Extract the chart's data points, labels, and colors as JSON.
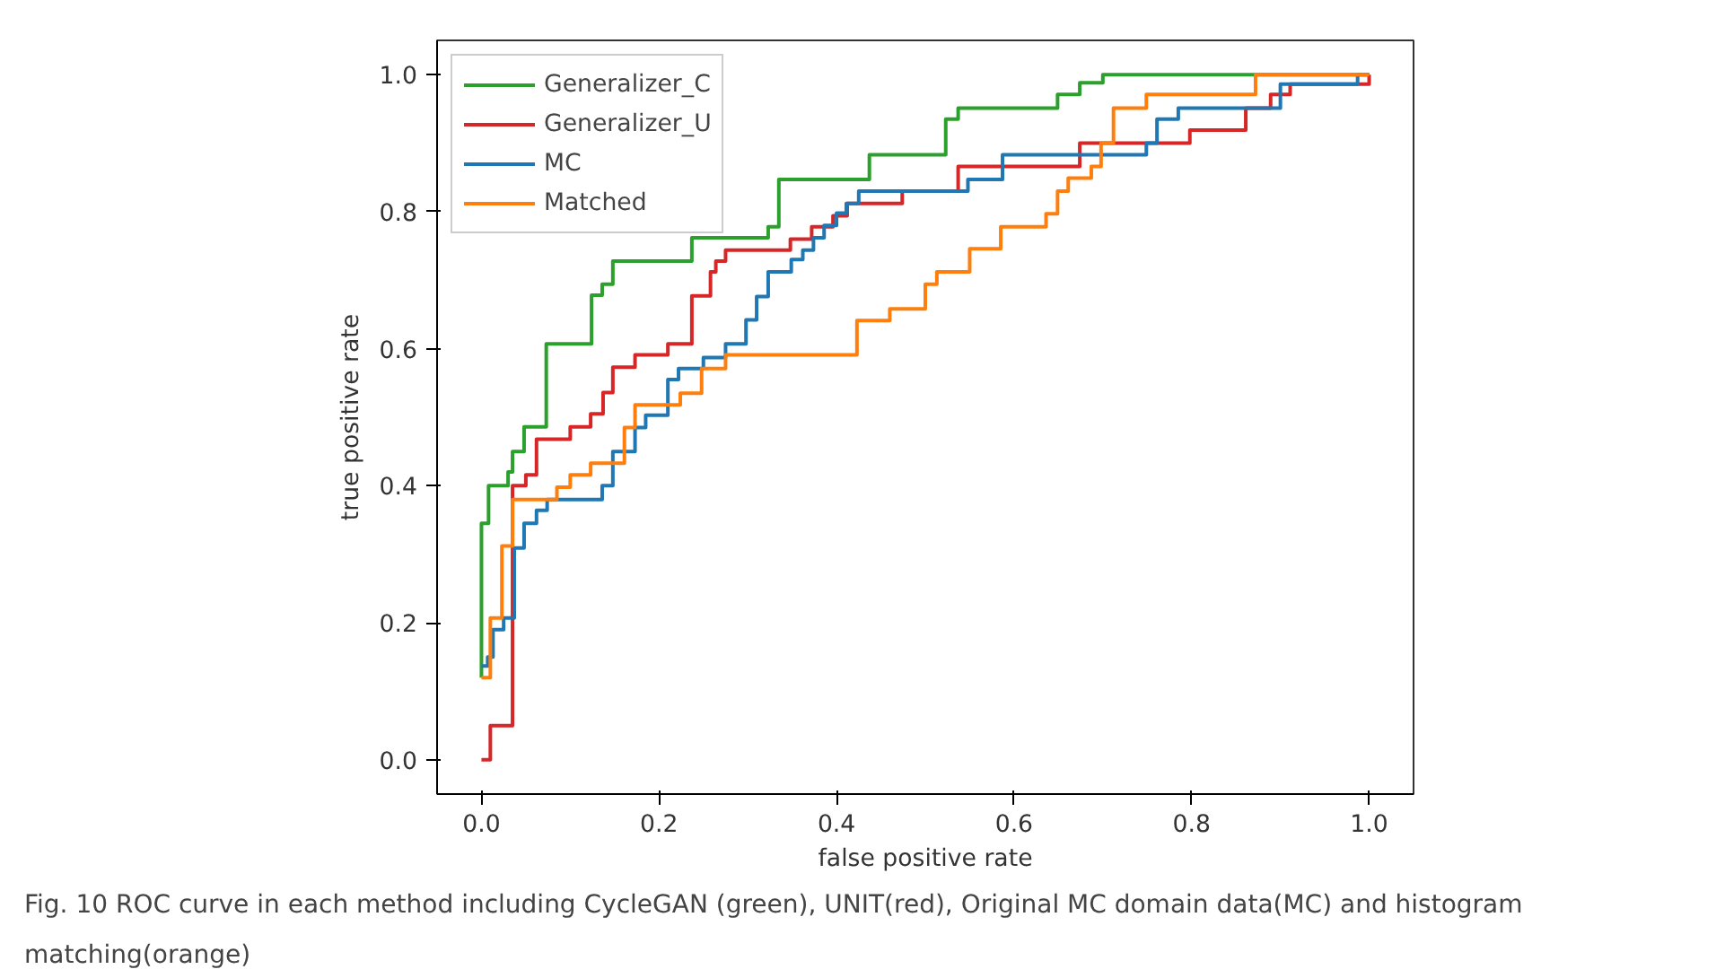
{
  "chart_data": {
    "type": "step",
    "xlabel": "false positive rate",
    "ylabel": "true positive rate",
    "xlim": [
      -0.05,
      1.05
    ],
    "ylim": [
      -0.05,
      1.05
    ],
    "xticks": [
      {
        "value": 0,
        "label": "0.0"
      },
      {
        "value": 0.2,
        "label": "0.2"
      },
      {
        "value": 0.4,
        "label": "0.4"
      },
      {
        "value": 0.6,
        "label": "0.6"
      },
      {
        "value": 0.8,
        "label": "0.8"
      },
      {
        "value": 1,
        "label": "1.0"
      }
    ],
    "yticks": [
      {
        "value": 0,
        "label": "0.0"
      },
      {
        "value": 0.2,
        "label": "0.2"
      },
      {
        "value": 0.4,
        "label": "0.4"
      },
      {
        "value": 0.6,
        "label": "0.6"
      },
      {
        "value": 0.8,
        "label": "0.8"
      },
      {
        "value": 1,
        "label": "1.0"
      }
    ],
    "grid": false,
    "legend": "top left",
    "line_style": "solid",
    "annotations": [
      "Fig. 10  ROC curve in each method including CycleGAN (green), UNIT(red), Original MC domain data(MC) and histogram matching(orange)"
    ],
    "series": [
      {
        "name": "Generalizer_C",
        "color": "#2ca02c",
        "x": [
          0,
          0,
          0.008,
          0.03,
          0.035,
          0.048,
          0.073,
          0.124,
          0.136,
          0.148,
          0.237,
          0.323,
          0.335,
          0.437,
          0.523,
          0.537,
          0.649,
          0.674,
          0.7,
          1
        ],
        "values": [
          0.12,
          0.345,
          0.4,
          0.42,
          0.45,
          0.486,
          0.607,
          0.678,
          0.694,
          0.728,
          0.762,
          0.778,
          0.847,
          0.883,
          0.935,
          0.951,
          0.971,
          0.988,
          1,
          1
        ]
      },
      {
        "name": "Generalizer_U",
        "color": "#d62728",
        "x": [
          0,
          0.01,
          0.035,
          0.05,
          0.062,
          0.1,
          0.123,
          0.137,
          0.148,
          0.173,
          0.21,
          0.237,
          0.258,
          0.264,
          0.275,
          0.348,
          0.372,
          0.396,
          0.412,
          0.474,
          0.537,
          0.674,
          0.798,
          0.861,
          0.889,
          0.911,
          1
        ],
        "values": [
          0,
          0.05,
          0.4,
          0.416,
          0.468,
          0.486,
          0.505,
          0.536,
          0.573,
          0.591,
          0.607,
          0.677,
          0.712,
          0.728,
          0.744,
          0.76,
          0.778,
          0.794,
          0.812,
          0.83,
          0.866,
          0.9,
          0.919,
          0.951,
          0.971,
          0.986,
          1
        ]
      },
      {
        "name": "MC",
        "color": "#1f77b4",
        "x": [
          0,
          0.007,
          0.013,
          0.025,
          0.037,
          0.048,
          0.062,
          0.074,
          0.136,
          0.148,
          0.173,
          0.185,
          0.21,
          0.222,
          0.25,
          0.275,
          0.298,
          0.31,
          0.323,
          0.349,
          0.362,
          0.374,
          0.386,
          0.4,
          0.411,
          0.425,
          0.548,
          0.587,
          0.749,
          0.761,
          0.785,
          0.9,
          0.987,
          1
        ],
        "values": [
          0.137,
          0.15,
          0.19,
          0.207,
          0.309,
          0.345,
          0.364,
          0.38,
          0.4,
          0.45,
          0.485,
          0.503,
          0.555,
          0.571,
          0.587,
          0.607,
          0.642,
          0.676,
          0.712,
          0.73,
          0.744,
          0.762,
          0.78,
          0.798,
          0.812,
          0.83,
          0.847,
          0.883,
          0.9,
          0.935,
          0.951,
          0.986,
          1,
          1
        ]
      },
      {
        "name": "Matched",
        "color": "#ff7f0e",
        "x": [
          0,
          0.01,
          0.023,
          0.035,
          0.085,
          0.1,
          0.123,
          0.161,
          0.173,
          0.224,
          0.248,
          0.275,
          0.423,
          0.46,
          0.5,
          0.513,
          0.55,
          0.585,
          0.636,
          0.649,
          0.661,
          0.687,
          0.698,
          0.712,
          0.749,
          0.872,
          1
        ],
        "values": [
          0.12,
          0.207,
          0.312,
          0.38,
          0.398,
          0.416,
          0.433,
          0.485,
          0.518,
          0.535,
          0.571,
          0.591,
          0.641,
          0.658,
          0.694,
          0.712,
          0.746,
          0.778,
          0.797,
          0.83,
          0.849,
          0.866,
          0.9,
          0.951,
          0.971,
          1,
          1
        ]
      }
    ]
  }
}
